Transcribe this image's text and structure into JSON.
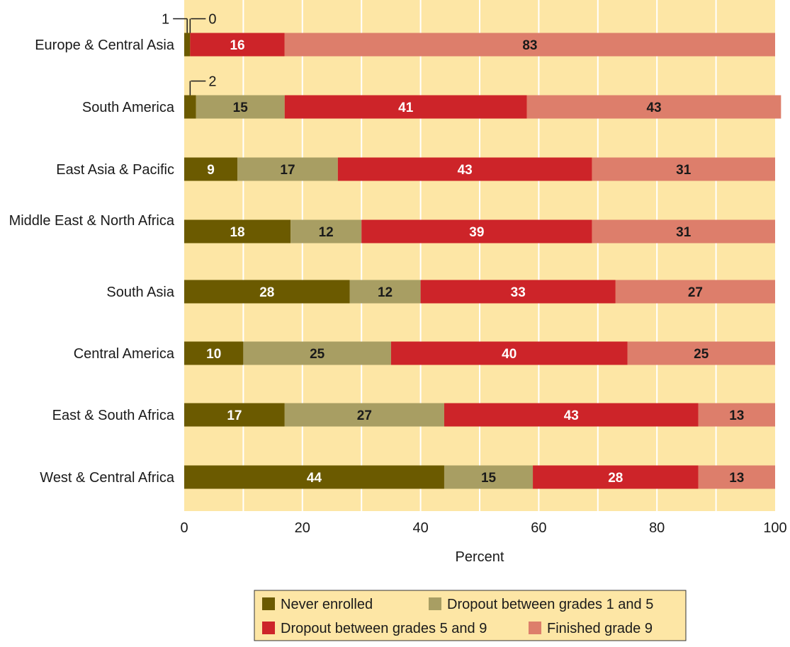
{
  "chart_data": {
    "type": "bar",
    "orientation": "horizontal",
    "stacked": true,
    "categories": [
      "Europe & Central Asia",
      "South America",
      "East Asia & Pacific",
      "Middle East & North Africa",
      "South Asia",
      "Central America",
      "East & South Africa",
      "West & Central Africa"
    ],
    "series": [
      {
        "name": "Never enrolled",
        "color": "#6b5a00",
        "label_color": "#ffffff",
        "values": [
          1,
          2,
          9,
          18,
          28,
          10,
          17,
          44
        ]
      },
      {
        "name": "Dropout between grades 1 and 5",
        "color": "#a89e63",
        "label_color": "#1a1a1a",
        "values": [
          0,
          15,
          17,
          12,
          12,
          25,
          27,
          15
        ]
      },
      {
        "name": "Dropout between grades 5 and 9",
        "color": "#cd2429",
        "label_color": "#ffffff",
        "values": [
          16,
          41,
          43,
          39,
          33,
          40,
          43,
          28
        ]
      },
      {
        "name": "Finished grade 9",
        "color": "#dd7e6b",
        "label_color": "#1a1a1a",
        "values": [
          83,
          43,
          31,
          31,
          27,
          25,
          13,
          13
        ]
      }
    ],
    "xlabel": "Percent",
    "xlim": [
      0,
      100
    ],
    "xticks": [
      0,
      20,
      40,
      60,
      80,
      100
    ],
    "xtick_labels": [
      "0",
      "20",
      "40",
      "60",
      "80",
      "100"
    ],
    "grid": true,
    "legend_position": "bottom",
    "callouts": [
      {
        "category": "Europe & Central Asia",
        "series": "Never enrolled",
        "text": "1"
      },
      {
        "category": "Europe & Central Asia",
        "series": "Dropout between grades 1 and 5",
        "text": "0"
      },
      {
        "category": "South America",
        "series": "Never enrolled",
        "text": "2"
      }
    ],
    "colors": {
      "plot_background": "#fde6a5",
      "grid_line": "#ffffff"
    }
  }
}
